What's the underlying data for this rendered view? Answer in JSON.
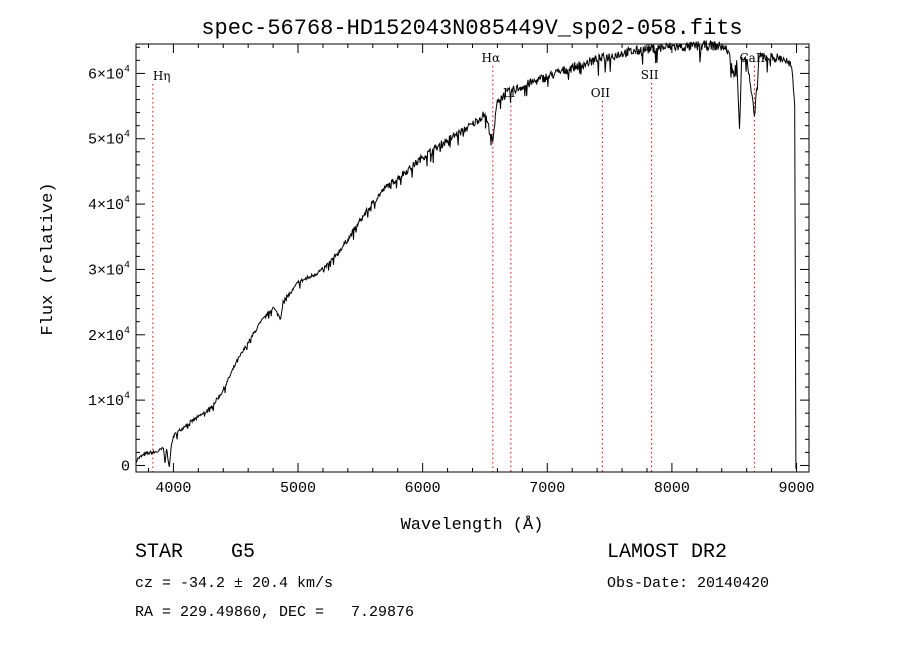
{
  "chart_data": {
    "type": "line",
    "title": "spec-56768-HD152043N085449V_sp02-058.fits",
    "xlabel": "Wavelength (Å)",
    "ylabel": "Flux (relative)",
    "xlim": [
      3700,
      9100
    ],
    "ylim": [
      -1000,
      64500
    ],
    "x_ticks": [
      4000,
      5000,
      6000,
      7000,
      8000,
      9000
    ],
    "x_tick_labels": [
      "4000",
      "5000",
      "6000",
      "7000",
      "8000",
      "9000"
    ],
    "y_ticks": [
      {
        "value": 0,
        "mantissa": "0",
        "exp": ""
      },
      {
        "value": 10000,
        "mantissa": "1×10",
        "exp": "4"
      },
      {
        "value": 20000,
        "mantissa": "2×10",
        "exp": "4"
      },
      {
        "value": 30000,
        "mantissa": "3×10",
        "exp": "4"
      },
      {
        "value": 40000,
        "mantissa": "4×10",
        "exp": "4"
      },
      {
        "value": 50000,
        "mantissa": "5×10",
        "exp": "4"
      },
      {
        "value": 60000,
        "mantissa": "6×10",
        "exp": "4"
      }
    ],
    "grid": false,
    "series": [
      {
        "color": "#000000",
        "points": [
          [
            3700,
            800
          ],
          [
            3720,
            1100
          ],
          [
            3760,
            1600
          ],
          [
            3800,
            1900
          ],
          [
            3850,
            2000
          ],
          [
            3880,
            2200
          ],
          [
            3920,
            2600
          ],
          [
            3933,
            400
          ],
          [
            3945,
            2500
          ],
          [
            3968,
            -200
          ],
          [
            3980,
            2400
          ],
          [
            4000,
            4500
          ],
          [
            4100,
            6200
          ],
          [
            4200,
            7400
          ],
          [
            4300,
            8800
          ],
          [
            4400,
            11500
          ],
          [
            4500,
            15600
          ],
          [
            4600,
            18800
          ],
          [
            4700,
            21900
          ],
          [
            4800,
            24200
          ],
          [
            4861,
            22500
          ],
          [
            4880,
            25200
          ],
          [
            4950,
            26600
          ],
          [
            5000,
            28000
          ],
          [
            5100,
            28900
          ],
          [
            5200,
            30000
          ],
          [
            5300,
            32000
          ],
          [
            5400,
            34600
          ],
          [
            5500,
            37500
          ],
          [
            5600,
            40200
          ],
          [
            5700,
            42500
          ],
          [
            5800,
            44000
          ],
          [
            5900,
            45500
          ],
          [
            6000,
            47200
          ],
          [
            6100,
            48500
          ],
          [
            6200,
            49800
          ],
          [
            6300,
            51000
          ],
          [
            6400,
            52200
          ],
          [
            6500,
            53800
          ],
          [
            6563,
            49500
          ],
          [
            6600,
            56000
          ],
          [
            6700,
            57200
          ],
          [
            6800,
            58000
          ],
          [
            6900,
            58800
          ],
          [
            7000,
            59500
          ],
          [
            7100,
            60200
          ],
          [
            7200,
            60900
          ],
          [
            7300,
            61500
          ],
          [
            7400,
            62100
          ],
          [
            7500,
            62600
          ],
          [
            7600,
            63100
          ],
          [
            7700,
            63400
          ],
          [
            7800,
            63700
          ],
          [
            7900,
            63900
          ],
          [
            8000,
            64100
          ],
          [
            8100,
            64000
          ],
          [
            8200,
            64200
          ],
          [
            8300,
            64300
          ],
          [
            8400,
            64100
          ],
          [
            8450,
            63500
          ],
          [
            8498,
            59500
          ],
          [
            8520,
            62000
          ],
          [
            8542,
            51500
          ],
          [
            8560,
            62500
          ],
          [
            8600,
            62200
          ],
          [
            8662,
            53500
          ],
          [
            8700,
            62500
          ],
          [
            8800,
            62500
          ],
          [
            8900,
            62200
          ],
          [
            8960,
            61000
          ],
          [
            8985,
            55000
          ],
          [
            8995,
            -500
          ]
        ]
      }
    ],
    "line_markers": [
      {
        "label": "Hη",
        "x": 3835
      },
      {
        "label": "Hα",
        "x": 6563
      },
      {
        "label": "Li",
        "x": 6708
      },
      {
        "label": "OII",
        "x": 7442
      },
      {
        "label": "SII",
        "x": 7837
      },
      {
        "label": "CaII",
        "x": 8662
      }
    ]
  },
  "info": {
    "class_line": "STAR    G5",
    "survey": "LAMOST DR2",
    "cz": "cz = -34.2 ± 20.4 km/s",
    "obs_date": "Obs-Date: 20140420",
    "coords": "RA = 229.49860, DEC =   7.29876"
  },
  "colors": {
    "axes": "#000000",
    "marker_line": "#ff0000",
    "spectrum": "#000000"
  }
}
